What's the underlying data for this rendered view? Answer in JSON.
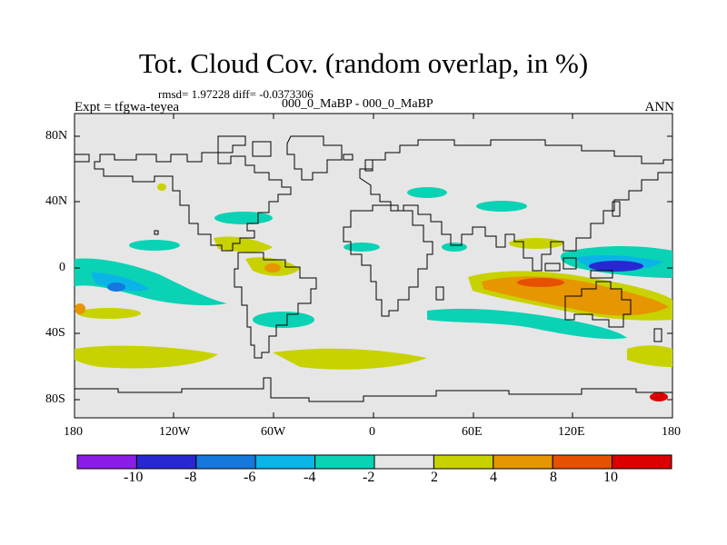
{
  "title": "Tot. Cloud Cov. (random overlap, in %)",
  "stats": "rmsd= 1.97228 diff= -0.0373306",
  "expt_label": "Expt = tfgwa-teyea",
  "cases": "000_0_MaBP - 000_0_MaBP",
  "season": "ANN",
  "lat_labels": [
    "80N",
    "40N",
    "0",
    "40S",
    "80S"
  ],
  "lon_labels": [
    "180",
    "120W",
    "60W",
    "0",
    "60E",
    "120E",
    "180"
  ],
  "colorbar": {
    "labels": [
      "-10",
      "-8",
      "-6",
      "-4",
      "-2",
      "2",
      "4",
      "8",
      "10"
    ],
    "colors": [
      "#8b1ee6",
      "#2828d2",
      "#1478dc",
      "#0ab4e6",
      "#0ad2b4",
      "#e6e6e6",
      "#c8d200",
      "#e69600",
      "#e65000",
      "#dc0000"
    ]
  },
  "colors": {
    "land_outline": "#000000",
    "background_field": "#e6e6e6"
  }
}
